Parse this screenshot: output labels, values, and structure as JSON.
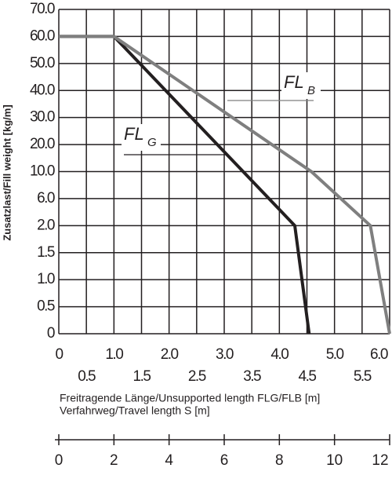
{
  "chart_data": {
    "type": "line",
    "y_label": "Zusatzlast/Fill weight [kg/m]",
    "x_label": "Freitragende Länge/Unsupported length FLG/FLB [m]",
    "x2_label": "Verfahrweg/Travel length S [m]",
    "xlim": [
      0,
      6
    ],
    "xticks": [
      0,
      0.5,
      {
        "value": 1,
        "label": "1.0"
      },
      1.5,
      {
        "value": 2,
        "label": "2.0"
      },
      2.5,
      {
        "value": 3,
        "label": "3.0"
      },
      3.5,
      {
        "value": 4,
        "label": "4.0"
      },
      4.5,
      {
        "value": 5,
        "label": "5.0"
      },
      5.5,
      {
        "value": 6,
        "label": "6.0"
      }
    ],
    "yticks": [
      0,
      0.5,
      {
        "value": 1,
        "label": "1.0"
      },
      1.5,
      {
        "value": 2,
        "label": "2.0"
      },
      {
        "value": 6,
        "label": "6.0"
      },
      {
        "value": 10,
        "label": "10.0"
      },
      {
        "value": 20,
        "label": "20.0"
      },
      {
        "value": 30,
        "label": "30.0"
      },
      {
        "value": 40,
        "label": "40.0"
      },
      {
        "value": 50,
        "label": "50.0"
      },
      {
        "value": 60,
        "label": "60.0"
      },
      {
        "value": 70,
        "label": "70.0"
      }
    ],
    "ylim": [
      0,
      70
    ],
    "x2lim": [
      0,
      12
    ],
    "x2ticks": [
      0,
      2,
      4,
      6,
      8,
      10,
      12
    ],
    "grid": true,
    "series": [
      {
        "name": "FL",
        "subscript": "G",
        "color": "#231f20",
        "x": [
          0,
          1,
          4.28,
          4.54
        ],
        "values": [
          60,
          60,
          2,
          0
        ]
      },
      {
        "name": "FL",
        "subscript": "B",
        "color": "#7f7f7f",
        "x": [
          0,
          1,
          4.58,
          5.65,
          6
        ],
        "values": [
          60,
          60,
          10,
          2,
          0
        ]
      }
    ]
  }
}
